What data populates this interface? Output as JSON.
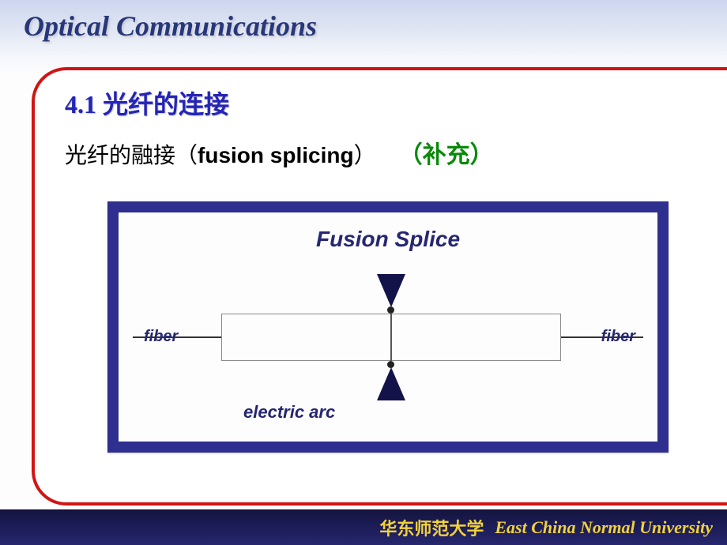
{
  "header": {
    "title": "Optical Communications"
  },
  "section": {
    "title": "4.1 光纤的连接",
    "subtitle_cn": "光纤的融接",
    "subtitle_paren_open": "（",
    "subtitle_en": "fusion splicing",
    "subtitle_paren_close": "）",
    "supplement": "（补充）"
  },
  "diagram": {
    "title": "Fusion Splice",
    "label_left": "fiber",
    "label_right": "fiber",
    "label_arc": "electric arc",
    "frame_color": "#2f2f8f",
    "title_color": "#262672",
    "line_color": "#333333",
    "arrow_color": "#13134a",
    "box_border": "#8a8a8a"
  },
  "footer": {
    "cn": "华东师范大学",
    "en": "East China Normal University"
  },
  "colors": {
    "section_title": "#2424b8",
    "supplement": "#0a8a0a",
    "header": "#27377a",
    "footer_text": "#f2d23a",
    "frame_border": "#d21414"
  }
}
